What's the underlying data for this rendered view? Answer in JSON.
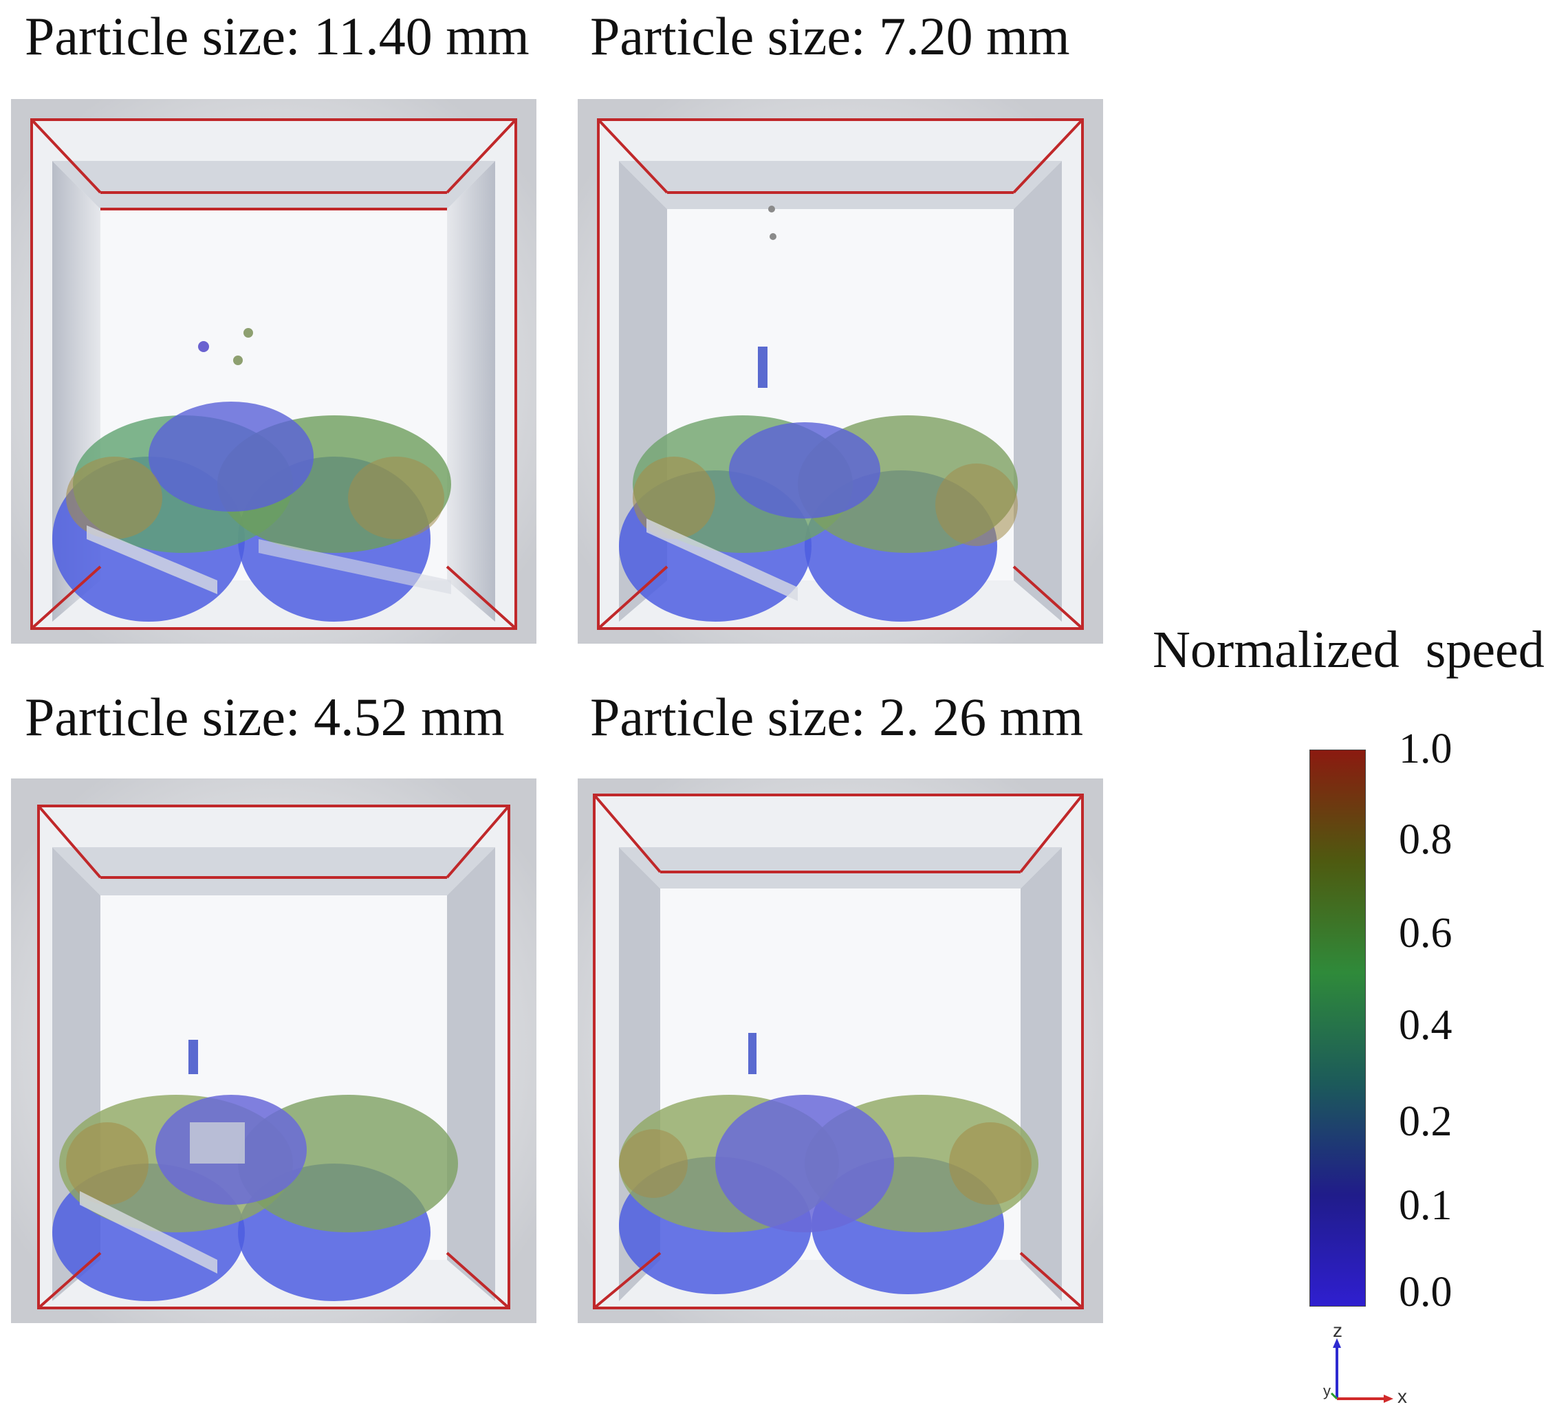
{
  "panels": [
    {
      "title": "Particle size: 11.40 mm"
    },
    {
      "title": "Particle size: 7.20 mm"
    },
    {
      "title": "Particle size: 4.52 mm"
    },
    {
      "title": "Particle size: 2. 26 mm"
    }
  ],
  "colorbar": {
    "title": "Normalized  speed",
    "ticks": [
      "1.0",
      "0.8",
      "0.6",
      "0.4",
      "0.2",
      "0.1",
      "0.0"
    ],
    "colors": [
      "#8b1a10",
      "#4e5a10",
      "#2f8a3a",
      "#1c5a5a",
      "#201c8a",
      "#2f1fd0"
    ]
  },
  "axes": {
    "z": "z",
    "x": "x",
    "y": "y"
  }
}
